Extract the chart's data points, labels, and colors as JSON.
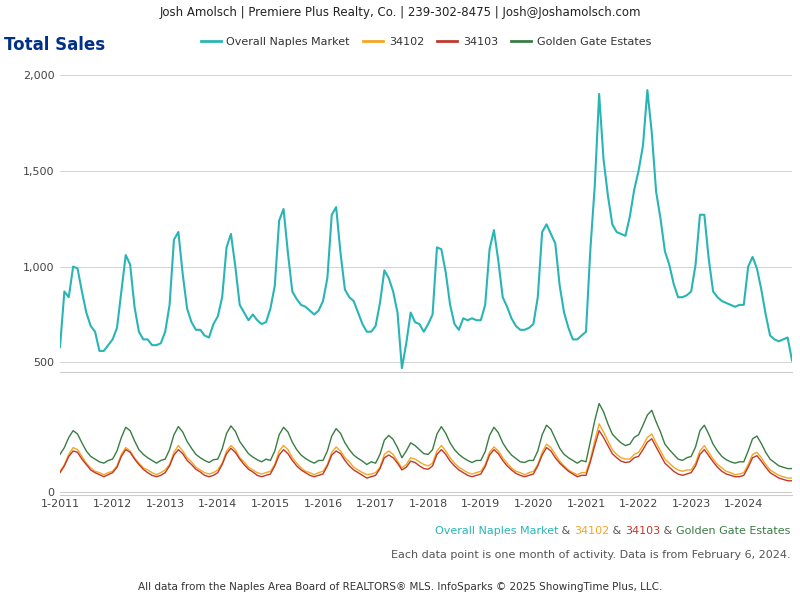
{
  "header_text": "Josh Amolsch | Premiere Plus Realty, Co. | 239-302-8475 | Josh@Joshamolsch.com",
  "title": "Total Sales",
  "title_color": "#003087",
  "header_bg": "#e8e8e8",
  "chart_bg": "#ffffff",
  "footer_line2": "Each data point is one month of activity. Data is from February 6, 2024.",
  "footer_line3": "All data from the Naples Area Board of REALTORS® MLS. InfoSparks © 2025 ShowingTime Plus, LLC.",
  "legend_labels": [
    "Overall Naples Market",
    "34102",
    "34103",
    "Golden Gate Estates"
  ],
  "line_colors": {
    "naples": "#29b5b5",
    "z34102": "#f5a623",
    "z34103": "#c0392b",
    "gge": "#3a7d44"
  },
  "footer_parts": [
    "Overall Naples Market",
    " & ",
    "34102",
    " & ",
    "34103",
    " & ",
    "Golden Gate Estates"
  ],
  "footer_colors": [
    "#29b5b5",
    "#555555",
    "#f5a623",
    "#555555",
    "#c0392b",
    "#555555",
    "#3a7d44"
  ],
  "naples_data": [
    580,
    870,
    840,
    1000,
    990,
    870,
    760,
    690,
    660,
    560,
    560,
    590,
    620,
    680,
    870,
    1060,
    1010,
    790,
    660,
    620,
    620,
    590,
    590,
    600,
    660,
    800,
    1140,
    1180,
    960,
    780,
    710,
    670,
    670,
    640,
    630,
    700,
    740,
    840,
    1100,
    1170,
    1000,
    800,
    760,
    720,
    750,
    720,
    700,
    710,
    780,
    900,
    1240,
    1300,
    1070,
    870,
    830,
    800,
    790,
    770,
    750,
    770,
    820,
    940,
    1270,
    1310,
    1070,
    880,
    840,
    820,
    760,
    700,
    660,
    660,
    690,
    810,
    980,
    940,
    870,
    760,
    470,
    600,
    760,
    710,
    700,
    660,
    700,
    750,
    1100,
    1090,
    970,
    800,
    700,
    670,
    730,
    720,
    730,
    720,
    720,
    800,
    1090,
    1190,
    1030,
    840,
    790,
    730,
    690,
    670,
    670,
    680,
    700,
    840,
    1180,
    1220,
    1170,
    1120,
    900,
    760,
    680,
    620,
    620,
    640,
    660,
    1090,
    1420,
    1900,
    1560,
    1370,
    1220,
    1180,
    1170,
    1160,
    1260,
    1400,
    1500,
    1630,
    1920,
    1700,
    1390,
    1250,
    1080,
    1010,
    910,
    840,
    840,
    850,
    870,
    1010,
    1270,
    1270,
    1040,
    870,
    840,
    820,
    810,
    800,
    790,
    800,
    800,
    1000,
    1050,
    990,
    880,
    750,
    640,
    620,
    610,
    620,
    630,
    510
  ],
  "z34102_data": [
    30,
    40,
    55,
    65,
    62,
    52,
    42,
    35,
    30,
    28,
    25,
    28,
    30,
    38,
    55,
    65,
    60,
    50,
    42,
    35,
    32,
    28,
    25,
    28,
    32,
    40,
    58,
    68,
    60,
    50,
    44,
    36,
    32,
    28,
    26,
    28,
    32,
    42,
    60,
    68,
    62,
    50,
    44,
    36,
    32,
    28,
    26,
    28,
    30,
    40,
    60,
    68,
    62,
    50,
    42,
    35,
    30,
    28,
    25,
    28,
    30,
    40,
    58,
    66,
    60,
    50,
    44,
    36,
    32,
    28,
    25,
    26,
    28,
    36,
    55,
    60,
    55,
    45,
    35,
    40,
    50,
    48,
    44,
    40,
    38,
    42,
    60,
    68,
    60,
    50,
    42,
    36,
    32,
    28,
    26,
    28,
    30,
    40,
    58,
    66,
    60,
    50,
    42,
    35,
    30,
    28,
    25,
    28,
    30,
    40,
    58,
    70,
    65,
    55,
    45,
    38,
    32,
    28,
    25,
    28,
    28,
    48,
    75,
    100,
    88,
    75,
    62,
    55,
    50,
    48,
    48,
    55,
    58,
    68,
    80,
    85,
    72,
    60,
    48,
    42,
    36,
    32,
    30,
    32,
    32,
    42,
    60,
    68,
    58,
    48,
    40,
    35,
    30,
    28,
    25,
    26,
    28,
    40,
    55,
    58,
    50,
    40,
    32,
    28,
    24,
    22,
    20,
    20
  ],
  "z34103_data": [
    28,
    38,
    52,
    60,
    58,
    48,
    40,
    32,
    28,
    25,
    22,
    25,
    28,
    36,
    52,
    62,
    58,
    48,
    40,
    33,
    28,
    24,
    22,
    24,
    28,
    38,
    54,
    62,
    56,
    46,
    40,
    33,
    29,
    24,
    22,
    24,
    28,
    40,
    56,
    64,
    58,
    48,
    40,
    33,
    29,
    24,
    22,
    24,
    26,
    38,
    54,
    62,
    56,
    46,
    38,
    32,
    28,
    24,
    22,
    24,
    26,
    38,
    54,
    60,
    56,
    46,
    38,
    32,
    28,
    24,
    20,
    22,
    24,
    34,
    50,
    54,
    50,
    42,
    32,
    36,
    45,
    43,
    38,
    34,
    33,
    38,
    55,
    62,
    55,
    45,
    38,
    32,
    28,
    24,
    22,
    24,
    26,
    37,
    54,
    62,
    56,
    46,
    38,
    32,
    27,
    24,
    22,
    24,
    26,
    38,
    54,
    65,
    60,
    50,
    42,
    36,
    30,
    26,
    22,
    24,
    24,
    44,
    68,
    90,
    80,
    68,
    56,
    50,
    45,
    43,
    44,
    50,
    52,
    62,
    73,
    78,
    66,
    54,
    42,
    36,
    30,
    26,
    24,
    26,
    28,
    38,
    55,
    62,
    53,
    44,
    36,
    30,
    26,
    24,
    22,
    22,
    24,
    36,
    50,
    53,
    45,
    36,
    28,
    24,
    20,
    18,
    16,
    16
  ],
  "gge_data": [
    55,
    65,
    80,
    90,
    85,
    72,
    60,
    52,
    48,
    44,
    42,
    46,
    48,
    60,
    80,
    95,
    90,
    75,
    62,
    55,
    50,
    46,
    42,
    46,
    48,
    62,
    84,
    96,
    88,
    74,
    64,
    55,
    50,
    46,
    43,
    47,
    48,
    63,
    86,
    97,
    89,
    74,
    65,
    56,
    51,
    47,
    44,
    48,
    46,
    60,
    84,
    95,
    88,
    73,
    62,
    54,
    49,
    45,
    42,
    46,
    46,
    60,
    82,
    93,
    86,
    72,
    62,
    54,
    49,
    45,
    40,
    44,
    42,
    55,
    76,
    83,
    77,
    65,
    50,
    60,
    72,
    68,
    62,
    56,
    55,
    62,
    85,
    96,
    86,
    72,
    62,
    55,
    50,
    46,
    43,
    46,
    46,
    59,
    83,
    95,
    87,
    72,
    62,
    54,
    49,
    44,
    43,
    46,
    46,
    60,
    84,
    98,
    92,
    78,
    64,
    55,
    50,
    46,
    42,
    46,
    44,
    74,
    105,
    130,
    118,
    100,
    85,
    78,
    72,
    68,
    70,
    80,
    84,
    98,
    113,
    120,
    103,
    88,
    70,
    62,
    55,
    48,
    46,
    50,
    52,
    66,
    90,
    98,
    85,
    70,
    60,
    52,
    47,
    44,
    42,
    44,
    44,
    60,
    78,
    82,
    71,
    58,
    48,
    43,
    38,
    36,
    34,
    34
  ],
  "x_tick_labels": [
    "1-2011",
    "1-2012",
    "1-2013",
    "1-2014",
    "1-2015",
    "1-2016",
    "1-2017",
    "1-2018",
    "1-2019",
    "1-2020",
    "1-2021",
    "1-2022",
    "1-2023",
    "1-2024"
  ],
  "x_tick_positions": [
    0,
    12,
    24,
    36,
    48,
    60,
    72,
    84,
    96,
    108,
    120,
    132,
    144,
    156
  ]
}
